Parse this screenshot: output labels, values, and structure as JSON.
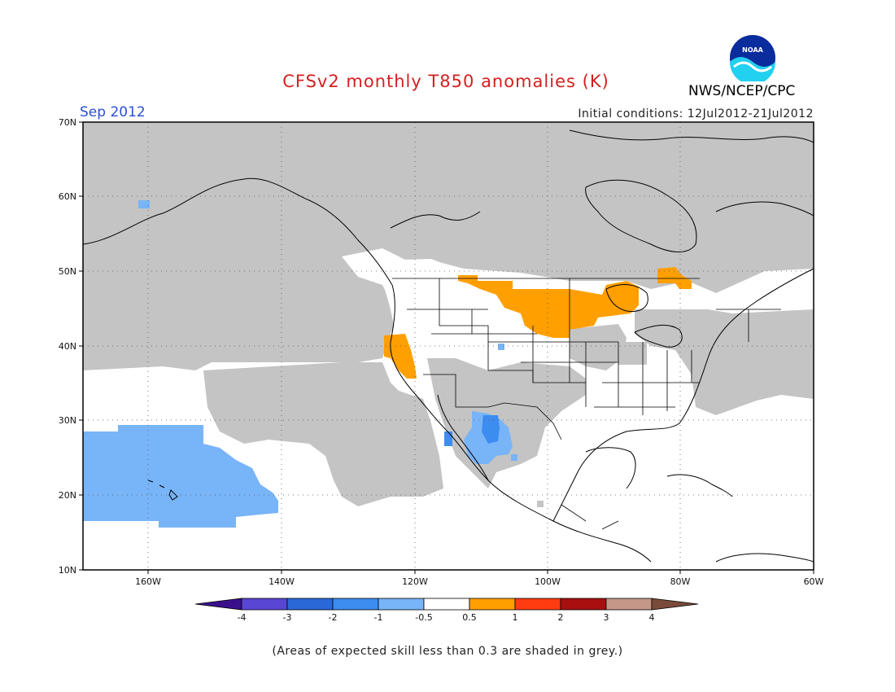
{
  "header": {
    "title": "CFSv2 monthly T850 anomalies (K)",
    "month": "Sep 2012",
    "initial_conditions": "Initial conditions: 12Jul2012-21Jul2012",
    "agency": "NWS/NCEP/CPC",
    "logo_text": "NOAA"
  },
  "map": {
    "lon_range": [
      -170,
      -60
    ],
    "lat_range": [
      10,
      70
    ],
    "lat_labels": [
      "70N",
      "60N",
      "50N",
      "40N",
      "30N",
      "20N",
      "10N"
    ],
    "lon_labels": [
      "160W",
      "140W",
      "120W",
      "100W",
      "80W",
      "60W"
    ],
    "legend": [
      "-4",
      "-3",
      "-2",
      "-1",
      "-0.5",
      "0.5",
      "1",
      "2",
      "3",
      "4"
    ],
    "colors": {
      "grey": "#c4c4c4",
      "warm_0.5_1": "#ff9f00",
      "cool_-1_-0.5": "#78b4f8",
      "cool_-2_-1": "#3d8cf0"
    }
  },
  "colorbar": {
    "colors": [
      "#3a0f8c",
      "#5a46d4",
      "#2a68d8",
      "#3d8cf0",
      "#78b4f8",
      "#ffffff",
      "#ff9f00",
      "#ff3c10",
      "#a80f0f",
      "#c49888",
      "#7a4a3a"
    ]
  },
  "footnote": "(Areas of expected skill less than 0.3 are shaded in grey.)"
}
